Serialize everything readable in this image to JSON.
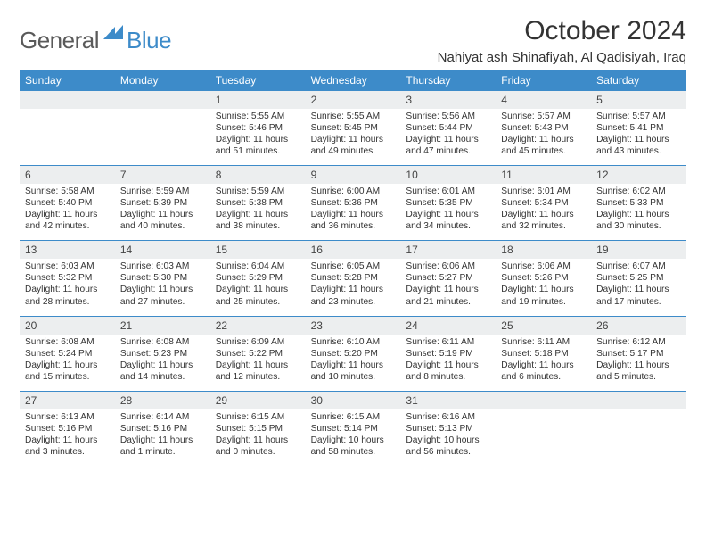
{
  "brand": {
    "word1": "General",
    "word2": "Blue"
  },
  "title": "October 2024",
  "location": "Nahiyat ash Shinafiyah, Al Qadisiyah, Iraq",
  "colors": {
    "header_bg": "#3d8bc9",
    "daynum_bg": "#eceeef",
    "border": "#3d8bc9",
    "text": "#333333",
    "logo_gray": "#5a5a5a",
    "logo_blue": "#3d8bc9"
  },
  "dow": [
    "Sunday",
    "Monday",
    "Tuesday",
    "Wednesday",
    "Thursday",
    "Friday",
    "Saturday"
  ],
  "weeks": [
    [
      {
        "num": "",
        "lines": []
      },
      {
        "num": "",
        "lines": []
      },
      {
        "num": "1",
        "lines": [
          "Sunrise: 5:55 AM",
          "Sunset: 5:46 PM",
          "Daylight: 11 hours",
          "and 51 minutes."
        ]
      },
      {
        "num": "2",
        "lines": [
          "Sunrise: 5:55 AM",
          "Sunset: 5:45 PM",
          "Daylight: 11 hours",
          "and 49 minutes."
        ]
      },
      {
        "num": "3",
        "lines": [
          "Sunrise: 5:56 AM",
          "Sunset: 5:44 PM",
          "Daylight: 11 hours",
          "and 47 minutes."
        ]
      },
      {
        "num": "4",
        "lines": [
          "Sunrise: 5:57 AM",
          "Sunset: 5:43 PM",
          "Daylight: 11 hours",
          "and 45 minutes."
        ]
      },
      {
        "num": "5",
        "lines": [
          "Sunrise: 5:57 AM",
          "Sunset: 5:41 PM",
          "Daylight: 11 hours",
          "and 43 minutes."
        ]
      }
    ],
    [
      {
        "num": "6",
        "lines": [
          "Sunrise: 5:58 AM",
          "Sunset: 5:40 PM",
          "Daylight: 11 hours",
          "and 42 minutes."
        ]
      },
      {
        "num": "7",
        "lines": [
          "Sunrise: 5:59 AM",
          "Sunset: 5:39 PM",
          "Daylight: 11 hours",
          "and 40 minutes."
        ]
      },
      {
        "num": "8",
        "lines": [
          "Sunrise: 5:59 AM",
          "Sunset: 5:38 PM",
          "Daylight: 11 hours",
          "and 38 minutes."
        ]
      },
      {
        "num": "9",
        "lines": [
          "Sunrise: 6:00 AM",
          "Sunset: 5:36 PM",
          "Daylight: 11 hours",
          "and 36 minutes."
        ]
      },
      {
        "num": "10",
        "lines": [
          "Sunrise: 6:01 AM",
          "Sunset: 5:35 PM",
          "Daylight: 11 hours",
          "and 34 minutes."
        ]
      },
      {
        "num": "11",
        "lines": [
          "Sunrise: 6:01 AM",
          "Sunset: 5:34 PM",
          "Daylight: 11 hours",
          "and 32 minutes."
        ]
      },
      {
        "num": "12",
        "lines": [
          "Sunrise: 6:02 AM",
          "Sunset: 5:33 PM",
          "Daylight: 11 hours",
          "and 30 minutes."
        ]
      }
    ],
    [
      {
        "num": "13",
        "lines": [
          "Sunrise: 6:03 AM",
          "Sunset: 5:32 PM",
          "Daylight: 11 hours",
          "and 28 minutes."
        ]
      },
      {
        "num": "14",
        "lines": [
          "Sunrise: 6:03 AM",
          "Sunset: 5:30 PM",
          "Daylight: 11 hours",
          "and 27 minutes."
        ]
      },
      {
        "num": "15",
        "lines": [
          "Sunrise: 6:04 AM",
          "Sunset: 5:29 PM",
          "Daylight: 11 hours",
          "and 25 minutes."
        ]
      },
      {
        "num": "16",
        "lines": [
          "Sunrise: 6:05 AM",
          "Sunset: 5:28 PM",
          "Daylight: 11 hours",
          "and 23 minutes."
        ]
      },
      {
        "num": "17",
        "lines": [
          "Sunrise: 6:06 AM",
          "Sunset: 5:27 PM",
          "Daylight: 11 hours",
          "and 21 minutes."
        ]
      },
      {
        "num": "18",
        "lines": [
          "Sunrise: 6:06 AM",
          "Sunset: 5:26 PM",
          "Daylight: 11 hours",
          "and 19 minutes."
        ]
      },
      {
        "num": "19",
        "lines": [
          "Sunrise: 6:07 AM",
          "Sunset: 5:25 PM",
          "Daylight: 11 hours",
          "and 17 minutes."
        ]
      }
    ],
    [
      {
        "num": "20",
        "lines": [
          "Sunrise: 6:08 AM",
          "Sunset: 5:24 PM",
          "Daylight: 11 hours",
          "and 15 minutes."
        ]
      },
      {
        "num": "21",
        "lines": [
          "Sunrise: 6:08 AM",
          "Sunset: 5:23 PM",
          "Daylight: 11 hours",
          "and 14 minutes."
        ]
      },
      {
        "num": "22",
        "lines": [
          "Sunrise: 6:09 AM",
          "Sunset: 5:22 PM",
          "Daylight: 11 hours",
          "and 12 minutes."
        ]
      },
      {
        "num": "23",
        "lines": [
          "Sunrise: 6:10 AM",
          "Sunset: 5:20 PM",
          "Daylight: 11 hours",
          "and 10 minutes."
        ]
      },
      {
        "num": "24",
        "lines": [
          "Sunrise: 6:11 AM",
          "Sunset: 5:19 PM",
          "Daylight: 11 hours",
          "and 8 minutes."
        ]
      },
      {
        "num": "25",
        "lines": [
          "Sunrise: 6:11 AM",
          "Sunset: 5:18 PM",
          "Daylight: 11 hours",
          "and 6 minutes."
        ]
      },
      {
        "num": "26",
        "lines": [
          "Sunrise: 6:12 AM",
          "Sunset: 5:17 PM",
          "Daylight: 11 hours",
          "and 5 minutes."
        ]
      }
    ],
    [
      {
        "num": "27",
        "lines": [
          "Sunrise: 6:13 AM",
          "Sunset: 5:16 PM",
          "Daylight: 11 hours",
          "and 3 minutes."
        ]
      },
      {
        "num": "28",
        "lines": [
          "Sunrise: 6:14 AM",
          "Sunset: 5:16 PM",
          "Daylight: 11 hours",
          "and 1 minute."
        ]
      },
      {
        "num": "29",
        "lines": [
          "Sunrise: 6:15 AM",
          "Sunset: 5:15 PM",
          "Daylight: 11 hours",
          "and 0 minutes."
        ]
      },
      {
        "num": "30",
        "lines": [
          "Sunrise: 6:15 AM",
          "Sunset: 5:14 PM",
          "Daylight: 10 hours",
          "and 58 minutes."
        ]
      },
      {
        "num": "31",
        "lines": [
          "Sunrise: 6:16 AM",
          "Sunset: 5:13 PM",
          "Daylight: 10 hours",
          "and 56 minutes."
        ]
      },
      {
        "num": "",
        "lines": []
      },
      {
        "num": "",
        "lines": []
      }
    ]
  ]
}
